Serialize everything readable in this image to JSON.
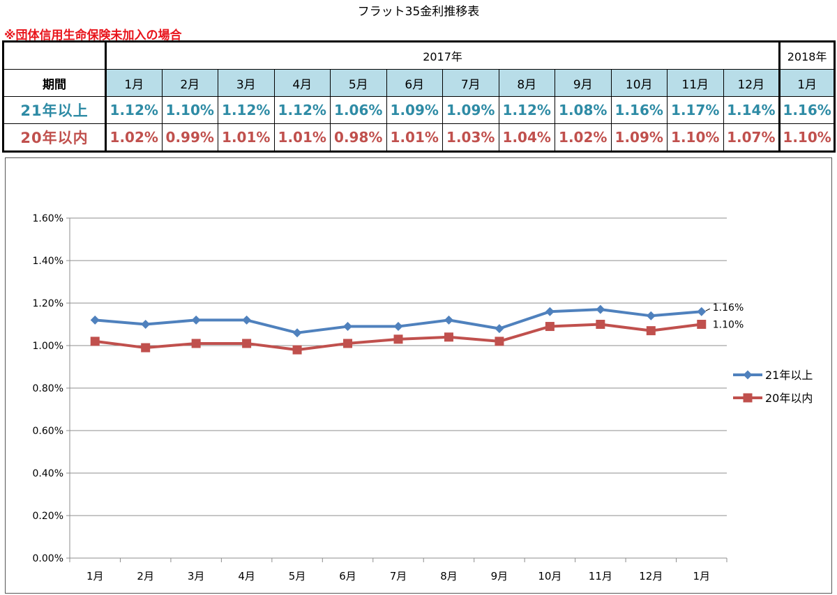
{
  "page_title": "フラット35金利推移表",
  "note": "※団体信用生命保険未加入の場合",
  "table": {
    "corner": "",
    "year_2017": "2017年",
    "year_2018": "2018年",
    "period_label": "期間",
    "months": [
      "1月",
      "2月",
      "3月",
      "4月",
      "5月",
      "6月",
      "7月",
      "8月",
      "9月",
      "10月",
      "11月",
      "12月",
      "1月"
    ],
    "rows": [
      {
        "label": "21年以上",
        "values": [
          "1.12%",
          "1.10%",
          "1.12%",
          "1.12%",
          "1.06%",
          "1.09%",
          "1.09%",
          "1.12%",
          "1.08%",
          "1.16%",
          "1.17%",
          "1.14%",
          "1.16%"
        ]
      },
      {
        "label": "20年以内",
        "values": [
          "1.02%",
          "0.99%",
          "1.01%",
          "1.01%",
          "0.98%",
          "1.01%",
          "1.03%",
          "1.04%",
          "1.02%",
          "1.09%",
          "1.10%",
          "1.07%",
          "1.10%"
        ]
      }
    ]
  },
  "chart_data": {
    "type": "line",
    "title": "",
    "xlabel": "",
    "ylabel": "",
    "categories": [
      "1月",
      "2月",
      "3月",
      "4月",
      "5月",
      "6月",
      "7月",
      "8月",
      "9月",
      "10月",
      "11月",
      "12月",
      "1月"
    ],
    "series": [
      {
        "name": "21年以上",
        "color": "#4f81bd",
        "marker": "diamond",
        "values": [
          1.12,
          1.1,
          1.12,
          1.12,
          1.06,
          1.09,
          1.09,
          1.12,
          1.08,
          1.16,
          1.17,
          1.14,
          1.16
        ]
      },
      {
        "name": "20年以内",
        "color": "#c0504d",
        "marker": "square",
        "values": [
          1.02,
          0.99,
          1.01,
          1.01,
          0.98,
          1.01,
          1.03,
          1.04,
          1.02,
          1.09,
          1.1,
          1.07,
          1.1
        ]
      }
    ],
    "ylim": [
      0,
      1.6
    ],
    "yticks": [
      0,
      0.2,
      0.4,
      0.6,
      0.8,
      1.0,
      1.2,
      1.4,
      1.6
    ],
    "ytick_labels": [
      "0.00%",
      "0.20%",
      "0.40%",
      "0.60%",
      "0.80%",
      "1.00%",
      "1.20%",
      "1.40%",
      "1.60%"
    ],
    "grid": true,
    "legend": "right",
    "annotations": [
      {
        "series": 0,
        "index": 12,
        "text": "1.16%"
      },
      {
        "series": 1,
        "index": 12,
        "text": "1.10%"
      }
    ]
  }
}
